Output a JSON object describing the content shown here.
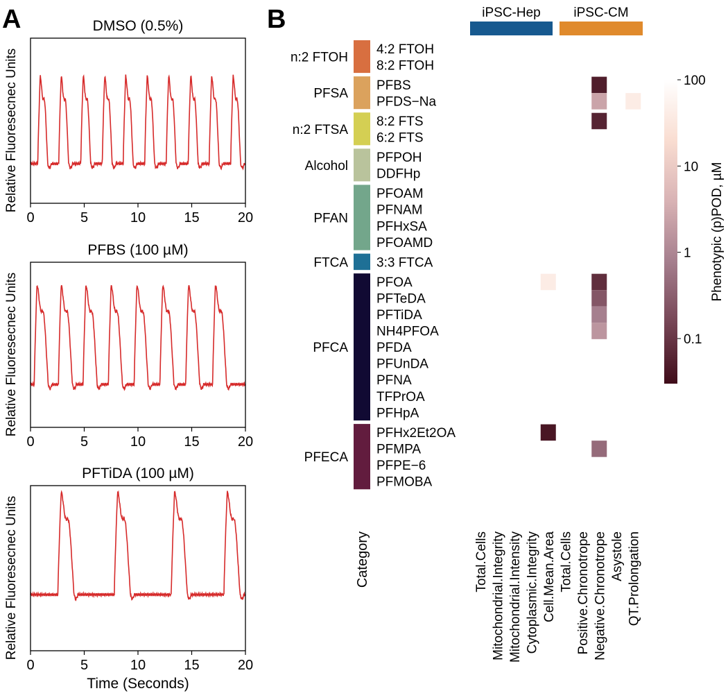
{
  "panel_labels": {
    "a": "A",
    "b": "B"
  },
  "chart_data": [
    {
      "type": "line",
      "title": "DMSO (0.5%)",
      "xlabel": "",
      "ylabel": "Relative Fluoresecnec Units",
      "xlim": [
        0,
        20
      ],
      "xticks": [
        0,
        5,
        10,
        15,
        20
      ],
      "ylim": [
        0,
        1
      ],
      "color": "#d62a2a",
      "baseline": 0.24,
      "peak": 0.77,
      "peaks": [
        0.9,
        2.85,
        4.9,
        6.9,
        8.85,
        10.85,
        12.85,
        14.9,
        16.85,
        18.85
      ],
      "rise": 0.22,
      "fall": 0.7
    },
    {
      "type": "line",
      "title": "PFBS (100 µM)",
      "xlabel": "",
      "ylabel": "Relative Fluoresecnec Units",
      "xlim": [
        0,
        20
      ],
      "xticks": [
        0,
        5,
        10,
        15,
        20
      ],
      "ylim": [
        0,
        1
      ],
      "color": "#d62a2a",
      "baseline": 0.26,
      "peak": 0.86,
      "peaks": [
        0.6,
        2.85,
        5.15,
        7.5,
        9.9,
        12.3,
        14.7,
        17.2
      ],
      "rise": 0.25,
      "fall": 1.05
    },
    {
      "type": "line",
      "title": "PFTiDA (100 µM)",
      "xlabel": "Time (Seconds)",
      "ylabel": "Relative Fluoresecnec Units",
      "xlim": [
        0,
        20
      ],
      "xticks": [
        0,
        5,
        10,
        15,
        20
      ],
      "ylim": [
        0,
        1
      ],
      "color": "#d62a2a",
      "baseline": 0.34,
      "peak": 0.96,
      "peaks": [
        2.85,
        8.1,
        13.4,
        18.3
      ],
      "rise": 0.3,
      "fall": 1.2
    },
    {
      "type": "heatmap",
      "groups": [
        {
          "name": "iPSC-Hep",
          "color": "#17598f"
        },
        {
          "name": "iPSC-CM",
          "color": "#e08a2c"
        }
      ],
      "columns": [
        "Total.Cells",
        "Mitochondrial.Integrity",
        "Mitochondrial.Intensity",
        "Cytoplasmic.Integrity",
        "Cell.Mean.Area",
        "Total.Cells",
        "Positive.Chronotrope",
        "Negative.Chronotrope",
        "Asystole",
        "QT.Prolongation"
      ],
      "column_groups": [
        0,
        0,
        0,
        0,
        0,
        1,
        1,
        1,
        1,
        1
      ],
      "category_axis_label": "Category",
      "categories": [
        {
          "name": "n:2 FTOH",
          "color": "#d86f40",
          "chemicals": [
            "4:2 FTOH",
            "8:2 FTOH"
          ]
        },
        {
          "name": "PFSA",
          "color": "#dba25d",
          "chemicals": [
            "PFBS",
            "PFDS−Na"
          ]
        },
        {
          "name": "n:2 FTSA",
          "color": "#d4cf53",
          "chemicals": [
            "8:2 FTS",
            "6:2 FTS"
          ]
        },
        {
          "name": "Alcohol",
          "color": "#b9c39c",
          "chemicals": [
            "PFPOH",
            "DDFHp"
          ]
        },
        {
          "name": "PFAN",
          "color": "#73a68b",
          "chemicals": [
            "PFOAM",
            "PFNAM",
            "PFHxSA",
            "PFOAMD"
          ]
        },
        {
          "name": "FTCA",
          "color": "#1e7096",
          "chemicals": [
            "3:3 FTCA"
          ]
        },
        {
          "name": "PFCA",
          "color": "#110a33",
          "chemicals": [
            "PFOA",
            "PFTeDA",
            "PFTiDA",
            "NH4PFOA",
            "PFDA",
            "PFUnDA",
            "PFNA",
            "TFPrOA",
            "PFHpA"
          ]
        },
        {
          "name": "PFECA",
          "color": "#621c3e",
          "chemicals": [
            "PFHx2Et2OA",
            "PFMPA",
            "PFPE−6",
            "PFMOBA"
          ]
        }
      ],
      "cells": [
        {
          "chemical": "PFBS",
          "column": 7,
          "value": 0.05
        },
        {
          "chemical": "PFDS−Na",
          "column": 7,
          "value": 2.5
        },
        {
          "chemical": "PFDS−Na",
          "column": 9,
          "value": 40
        },
        {
          "chemical": "8:2 FTS",
          "column": 7,
          "value": 0.06
        },
        {
          "chemical": "PFOA",
          "column": 4,
          "value": 40
        },
        {
          "chemical": "PFOA",
          "column": 7,
          "value": 0.08
        },
        {
          "chemical": "PFTeDA",
          "column": 7,
          "value": 0.25
        },
        {
          "chemical": "PFTiDA",
          "column": 7,
          "value": 0.8
        },
        {
          "chemical": "NH4PFOA",
          "column": 7,
          "value": 1.6
        },
        {
          "chemical": "PFHx2Et2OA",
          "column": 4,
          "value": 0.04
        },
        {
          "chemical": "PFMPA",
          "column": 7,
          "value": 0.45
        }
      ],
      "colorbar": {
        "label": "Phenotypic (p)POD, µM",
        "scale": "log",
        "range": [
          0.03,
          100
        ],
        "ticks": [
          100,
          10,
          1,
          0.1
        ],
        "tick_labels": [
          "100",
          "10",
          "1",
          "0.1"
        ],
        "stops": [
          "#3f0c19",
          "#764555",
          "#a57e8d",
          "#d8b2b4",
          "#f9ddd1",
          "#ffffff"
        ]
      }
    }
  ]
}
